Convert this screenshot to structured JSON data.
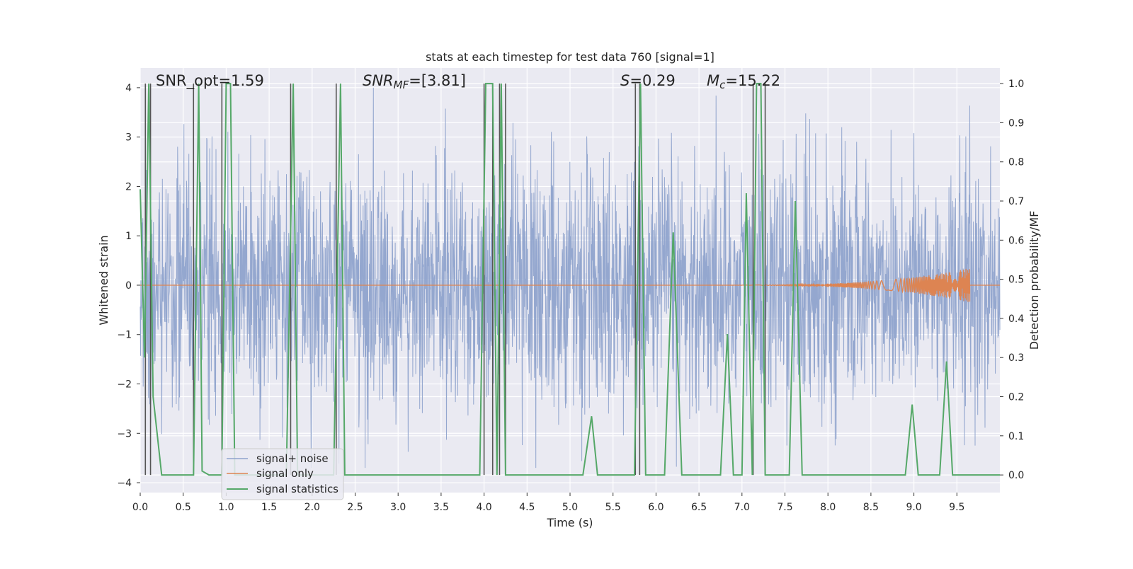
{
  "chart_data": {
    "type": "line",
    "title": "stats at each timestep for test data 760 [signal=1]",
    "xlabel": "Time (s)",
    "ylabel": "Whitened strain",
    "ylabel_right": "Detection probability/MF",
    "xlim": [
      0.0,
      10.0
    ],
    "ylim": [
      -4.2,
      4.4
    ],
    "ylim_right": [
      -0.045,
      1.04
    ],
    "x_ticks": [
      0.0,
      0.5,
      1.0,
      1.5,
      2.0,
      2.5,
      3.0,
      3.5,
      4.0,
      4.5,
      5.0,
      5.5,
      6.0,
      6.5,
      7.0,
      7.5,
      8.0,
      8.5,
      9.0,
      9.5
    ],
    "x_tick_labels": [
      "0.0",
      "0.5",
      "1.0",
      "1.5",
      "2.0",
      "2.5",
      "3.0",
      "3.5",
      "4.0",
      "4.5",
      "5.0",
      "5.5",
      "6.0",
      "6.5",
      "7.0",
      "7.5",
      "8.0",
      "8.5",
      "9.0",
      "9.5"
    ],
    "y_ticks": [
      -4,
      -3,
      -2,
      -1,
      0,
      1,
      2,
      3,
      4
    ],
    "y_tick_labels": [
      "−4",
      "−3",
      "−2",
      "−1",
      "0",
      "1",
      "2",
      "3",
      "4"
    ],
    "y_right_ticks": [
      0.0,
      0.1,
      0.2,
      0.3,
      0.4,
      0.5,
      0.6,
      0.7,
      0.8,
      0.9,
      1.0
    ],
    "y_right_tick_labels": [
      "0.0",
      "0.1",
      "0.2",
      "0.3",
      "0.4",
      "0.5",
      "0.6",
      "0.7",
      "0.8",
      "0.9",
      "1.0"
    ],
    "grid": true,
    "annotations": {
      "snr_opt": "SNR_opt=1.59",
      "snr_mf_prefix": "SNR",
      "snr_mf_sub": "MF",
      "snr_mf_suffix": "=[3.81]",
      "s_prefix": "S",
      "s_suffix": "=0.29",
      "mc_prefix": "M",
      "mc_sub": "c",
      "mc_suffix": "=15.22"
    },
    "legend": {
      "placement": "lower-left",
      "entries": [
        "signal+ noise",
        "signal only",
        "signal statistics"
      ]
    },
    "colors": {
      "noise": "#8fa3cc",
      "signal": "#dd8452",
      "stats": "#55a868",
      "vline": "#555555",
      "plot_bg": "#eaeaf2",
      "grid": "#ffffff"
    },
    "series": [
      {
        "name": "signal+ noise",
        "kind": "noise",
        "envelope_typical": [
          -1.7,
          1.7
        ],
        "envelope_peak": [
          -3.7,
          4.0
        ]
      },
      {
        "name": "signal only",
        "kind": "chirp",
        "baseline": 0.0,
        "end_time": 9.65,
        "peak_amplitude": 0.35
      },
      {
        "name": "signal statistics",
        "kind": "line",
        "x": [
          0.0,
          0.05,
          0.1,
          0.15,
          0.25,
          0.3,
          0.62,
          0.68,
          0.72,
          0.8,
          0.95,
          1.0,
          1.05,
          1.1,
          1.2,
          1.7,
          1.78,
          1.83,
          1.88,
          2.1,
          2.25,
          2.33,
          2.38,
          3.95,
          4.02,
          4.05,
          4.1,
          4.15,
          4.2,
          4.25,
          4.3,
          5.15,
          5.25,
          5.32,
          5.75,
          5.82,
          5.88,
          6.1,
          6.2,
          6.3,
          6.75,
          6.83,
          6.9,
          7.0,
          7.05,
          7.12,
          7.17,
          7.22,
          7.27,
          7.32,
          7.55,
          7.62,
          7.7,
          8.9,
          8.98,
          9.05,
          9.3,
          9.38,
          9.45,
          10.0
        ],
        "y": [
          0.73,
          0.3,
          1.0,
          0.2,
          0.0,
          0.0,
          0.0,
          1.0,
          0.01,
          0.0,
          0.0,
          1.0,
          1.0,
          0.0,
          0.0,
          0.0,
          1.0,
          0.0,
          0.0,
          0.0,
          0.0,
          1.0,
          0.0,
          0.0,
          1.0,
          1.0,
          1.0,
          0.0,
          1.0,
          0.0,
          0.0,
          0.0,
          0.15,
          0.0,
          0.0,
          1.0,
          0.0,
          0.0,
          0.62,
          0.0,
          0.0,
          0.36,
          0.0,
          0.0,
          0.72,
          0.0,
          1.0,
          1.0,
          0.0,
          0.0,
          0.0,
          0.7,
          0.0,
          0.0,
          0.18,
          0.0,
          0.0,
          0.29,
          0.0,
          0.0
        ]
      },
      {
        "name": "detection markers",
        "kind": "vlines",
        "x": [
          0.06,
          0.12,
          0.62,
          0.95,
          1.75,
          2.28,
          4.0,
          4.1,
          4.18,
          4.25,
          5.76,
          5.81,
          7.13,
          7.27
        ]
      }
    ]
  }
}
